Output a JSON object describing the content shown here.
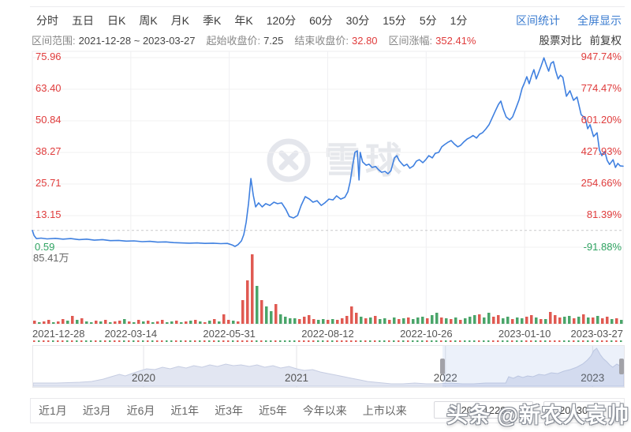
{
  "toolbar": {
    "period_tabs": [
      "分时",
      "五日",
      "日K",
      "周K",
      "月K",
      "季K",
      "年K",
      "120分",
      "60分",
      "30分",
      "15分",
      "5分",
      "1分"
    ],
    "actions": [
      {
        "label": "区间统计",
        "name": "range-stats-button"
      },
      {
        "label": "全屏显示",
        "name": "fullscreen-button"
      }
    ]
  },
  "info_bar": {
    "items": [
      {
        "label": "区间范围:",
        "value": "2021-12-28 ~ 2023-03-27",
        "color": "#454545"
      },
      {
        "label": "起始收盘价:",
        "value": "7.25",
        "color": "#454545"
      },
      {
        "label": "结束收盘价:",
        "value": "32.80",
        "color": "#e03c3c"
      },
      {
        "label": "区间涨幅:",
        "value": "352.41%",
        "color": "#e03c3c"
      }
    ],
    "actions": [
      {
        "label": "股票对比",
        "name": "stock-compare-button"
      },
      {
        "label": "前复权",
        "name": "adjust-mode-button"
      }
    ]
  },
  "colors": {
    "up": "#e03c3c",
    "down": "#2fa361",
    "link": "#3b7cd0",
    "line": "#3f80e0",
    "vol_up": "#e05a52",
    "vol_down": "#4aa56a"
  },
  "chart_data": {
    "type": "line",
    "title": "",
    "y_range": [
      0.59,
      75.96
    ],
    "baseline_price": 7.25,
    "y_axis_left": {
      "price_ticks": [
        75.96,
        63.4,
        50.84,
        38.27,
        25.71,
        13.15
      ],
      "min_label": "0.59",
      "volume_max_label": "85.41万"
    },
    "y_axis_right": {
      "percent_ticks": [
        "947.74%",
        "774.47%",
        "601.20%",
        "427.93%",
        "254.66%",
        "81.39%"
      ],
      "min_label": "-91.88%"
    },
    "x_labels": [
      "2021-12-28",
      "2022-03-14",
      "2022-05-31",
      "2022-08-12",
      "2022-10-26",
      "2023-01-10",
      "2023-03-27"
    ],
    "grid": true,
    "price_points": [
      [
        0,
        7.25
      ],
      [
        0.003,
        5.2
      ],
      [
        0.007,
        4.0
      ],
      [
        0.015,
        4.2
      ],
      [
        0.025,
        3.9
      ],
      [
        0.039,
        4.1
      ],
      [
        0.052,
        3.8
      ],
      [
        0.065,
        4.0
      ],
      [
        0.079,
        3.6
      ],
      [
        0.092,
        3.8
      ],
      [
        0.105,
        3.4
      ],
      [
        0.119,
        3.6
      ],
      [
        0.132,
        3.2
      ],
      [
        0.146,
        3.3
      ],
      [
        0.159,
        3.0
      ],
      [
        0.172,
        3.1
      ],
      [
        0.186,
        2.8
      ],
      [
        0.199,
        2.9
      ],
      [
        0.212,
        2.6
      ],
      [
        0.226,
        2.7
      ],
      [
        0.239,
        2.4
      ],
      [
        0.252,
        2.3
      ],
      [
        0.266,
        2.2
      ],
      [
        0.279,
        2.3
      ],
      [
        0.292,
        2.1
      ],
      [
        0.306,
        2.2
      ],
      [
        0.319,
        2.0
      ],
      [
        0.33,
        2.1
      ],
      [
        0.338,
        1.5
      ],
      [
        0.343,
        0.9
      ],
      [
        0.348,
        1.6
      ],
      [
        0.354,
        3.1
      ],
      [
        0.358,
        5.6
      ],
      [
        0.362,
        10.5
      ],
      [
        0.366,
        18.0
      ],
      [
        0.37,
        27.9
      ],
      [
        0.374,
        21.3
      ],
      [
        0.378,
        16.6
      ],
      [
        0.383,
        18.2
      ],
      [
        0.389,
        16.6
      ],
      [
        0.395,
        17.9
      ],
      [
        0.402,
        17.2
      ],
      [
        0.409,
        18.5
      ],
      [
        0.415,
        17.9
      ],
      [
        0.422,
        18.2
      ],
      [
        0.429,
        15.7
      ],
      [
        0.435,
        12.8
      ],
      [
        0.442,
        12.2
      ],
      [
        0.449,
        13.2
      ],
      [
        0.455,
        17.2
      ],
      [
        0.462,
        20.7
      ],
      [
        0.469,
        19.7
      ],
      [
        0.475,
        18.5
      ],
      [
        0.482,
        19.1
      ],
      [
        0.489,
        17.2
      ],
      [
        0.495,
        18.2
      ],
      [
        0.502,
        19.7
      ],
      [
        0.509,
        19.4
      ],
      [
        0.515,
        21.0
      ],
      [
        0.522,
        19.7
      ],
      [
        0.529,
        20.4
      ],
      [
        0.534,
        22.6
      ],
      [
        0.538,
        26.7
      ],
      [
        0.542,
        32.9
      ],
      [
        0.546,
        38.3
      ],
      [
        0.55,
        38.9
      ],
      [
        0.553,
        27.3
      ],
      [
        0.555,
        38.3
      ],
      [
        0.559,
        34.5
      ],
      [
        0.565,
        33.2
      ],
      [
        0.57,
        33.6
      ],
      [
        0.575,
        32.3
      ],
      [
        0.581,
        32.7
      ],
      [
        0.586,
        31.4
      ],
      [
        0.591,
        30.4
      ],
      [
        0.597,
        30.7
      ],
      [
        0.602,
        29.8
      ],
      [
        0.607,
        31.0
      ],
      [
        0.613,
        36.1
      ],
      [
        0.617,
        37.0
      ],
      [
        0.621,
        35.0
      ],
      [
        0.625,
        33.9
      ],
      [
        0.629,
        32.9
      ],
      [
        0.634,
        33.6
      ],
      [
        0.639,
        32.0
      ],
      [
        0.645,
        32.9
      ],
      [
        0.65,
        34.8
      ],
      [
        0.655,
        35.4
      ],
      [
        0.661,
        34.2
      ],
      [
        0.666,
        35.4
      ],
      [
        0.671,
        37.0
      ],
      [
        0.677,
        36.1
      ],
      [
        0.682,
        37.9
      ],
      [
        0.688,
        38.3
      ],
      [
        0.693,
        40.5
      ],
      [
        0.698,
        41.4
      ],
      [
        0.704,
        42.4
      ],
      [
        0.709,
        43.0
      ],
      [
        0.714,
        41.7
      ],
      [
        0.72,
        40.5
      ],
      [
        0.725,
        41.1
      ],
      [
        0.73,
        42.4
      ],
      [
        0.736,
        43.6
      ],
      [
        0.741,
        44.2
      ],
      [
        0.746,
        45.0
      ],
      [
        0.752,
        44.0
      ],
      [
        0.757,
        45.5
      ],
      [
        0.762,
        46.1
      ],
      [
        0.768,
        47.7
      ],
      [
        0.773,
        49.3
      ],
      [
        0.778,
        51.8
      ],
      [
        0.784,
        54.9
      ],
      [
        0.789,
        57.4
      ],
      [
        0.793,
        58.7
      ],
      [
        0.797,
        55.5
      ],
      [
        0.802,
        52.4
      ],
      [
        0.808,
        51.2
      ],
      [
        0.813,
        52.4
      ],
      [
        0.818,
        55.5
      ],
      [
        0.824,
        59.3
      ],
      [
        0.829,
        63.7
      ],
      [
        0.833,
        65.9
      ],
      [
        0.837,
        68.4
      ],
      [
        0.841,
        65.6
      ],
      [
        0.845,
        68.7
      ],
      [
        0.849,
        71.2
      ],
      [
        0.853,
        67.5
      ],
      [
        0.857,
        70.0
      ],
      [
        0.861,
        72.5
      ],
      [
        0.866,
        75.9
      ],
      [
        0.87,
        73.1
      ],
      [
        0.874,
        70.6
      ],
      [
        0.878,
        73.7
      ],
      [
        0.882,
        74.4
      ],
      [
        0.886,
        70.6
      ],
      [
        0.89,
        67.5
      ],
      [
        0.894,
        69.0
      ],
      [
        0.898,
        68.1
      ],
      [
        0.904,
        60.6
      ],
      [
        0.91,
        62.8
      ],
      [
        0.916,
        59.0
      ],
      [
        0.922,
        60.3
      ],
      [
        0.929,
        53.3
      ],
      [
        0.936,
        51.8
      ],
      [
        0.94,
        47.7
      ],
      [
        0.944,
        49.3
      ],
      [
        0.95,
        44.6
      ],
      [
        0.956,
        46.1
      ],
      [
        0.96,
        39.2
      ],
      [
        0.964,
        37.0
      ],
      [
        0.969,
        38.6
      ],
      [
        0.973,
        35.1
      ],
      [
        0.977,
        33.5
      ],
      [
        0.983,
        35.4
      ],
      [
        0.987,
        32.3
      ],
      [
        0.991,
        33.9
      ],
      [
        0.995,
        32.9
      ],
      [
        1,
        32.8
      ]
    ],
    "volume_bars": [
      "4r",
      "2g",
      "3r",
      "5r",
      "2g",
      "3r",
      "6r",
      "4g",
      "10r",
      "5g",
      "7r",
      "3g",
      "2g",
      "4r",
      "3g",
      "5r",
      "2g",
      "3r",
      "4r",
      "6g",
      "3r",
      "2g",
      "5r",
      "3g",
      "4r",
      "2g",
      "3r",
      "5r",
      "2g",
      "3g",
      "4r",
      "2g",
      "3r",
      "4g",
      "5r",
      "3g",
      "2r",
      "4g",
      "6r",
      "3g",
      "12r",
      "5r",
      "4g",
      "3r",
      "30r",
      "55r",
      "88r",
      "48g",
      "30r",
      "22g",
      "16g",
      "25r",
      "12g",
      "9g",
      "7g",
      "7g",
      "6r",
      "9r",
      "11r",
      "6r",
      "5g",
      "6g",
      "5r",
      "6g",
      "5r",
      "7r",
      "10r",
      "22r",
      "14r",
      "9g",
      "7r",
      "8g",
      "10r",
      "6g",
      "7g",
      "5r",
      "8g",
      "6r",
      "7g",
      "8r",
      "6g",
      "8g",
      "9g",
      "7r",
      "11g",
      "14g",
      "8r",
      "7g",
      "6r",
      "8g",
      "5r",
      "7g",
      "9g",
      "11g",
      "12r",
      "8g",
      "14g",
      "9r",
      "11r",
      "7g",
      "9g",
      "6r",
      "8g",
      "7g",
      "9r",
      "11r",
      "8g",
      "6r",
      "6g",
      "15r",
      "11r",
      "8r",
      "9g",
      "10g",
      "7r",
      "9g",
      "12r",
      "8g",
      "8r",
      "10g",
      "7r",
      "9r",
      "6g",
      "7r",
      "5g"
    ],
    "navigator": {
      "year_labels": [
        "2020",
        "2021",
        "2022",
        "2023"
      ],
      "year_positions": [
        0.187,
        0.446,
        0.698,
        0.947
      ],
      "area_max": 50,
      "selection": [
        0.693,
        1.0
      ],
      "area_points": [
        [
          0,
          4
        ],
        [
          0.039,
          4
        ],
        [
          0.079,
          5
        ],
        [
          0.099,
          6
        ],
        [
          0.119,
          9
        ],
        [
          0.132,
          12
        ],
        [
          0.146,
          15
        ],
        [
          0.156,
          13
        ],
        [
          0.167,
          16
        ],
        [
          0.179,
          19
        ],
        [
          0.192,
          22
        ],
        [
          0.206,
          21
        ],
        [
          0.219,
          24
        ],
        [
          0.232,
          22
        ],
        [
          0.246,
          25
        ],
        [
          0.259,
          23
        ],
        [
          0.272,
          26
        ],
        [
          0.286,
          24
        ],
        [
          0.299,
          27
        ],
        [
          0.312,
          25
        ],
        [
          0.326,
          28
        ],
        [
          0.339,
          26
        ],
        [
          0.352,
          27
        ],
        [
          0.366,
          25
        ],
        [
          0.379,
          27
        ],
        [
          0.392,
          24
        ],
        [
          0.406,
          26
        ],
        [
          0.419,
          23
        ],
        [
          0.433,
          25
        ],
        [
          0.446,
          22
        ],
        [
          0.459,
          20
        ],
        [
          0.473,
          21
        ],
        [
          0.486,
          18
        ],
        [
          0.499,
          16
        ],
        [
          0.513,
          14
        ],
        [
          0.526,
          12
        ],
        [
          0.539,
          10
        ],
        [
          0.553,
          8
        ],
        [
          0.566,
          6
        ],
        [
          0.579,
          5
        ],
        [
          0.593,
          4
        ],
        [
          0.606,
          3
        ],
        [
          0.626,
          3
        ],
        [
          0.646,
          4
        ],
        [
          0.666,
          3
        ],
        [
          0.686,
          3
        ],
        [
          0.706,
          4
        ],
        [
          0.726,
          3
        ],
        [
          0.746,
          3
        ],
        [
          0.766,
          4
        ],
        [
          0.786,
          4
        ],
        [
          0.8,
          4
        ],
        [
          0.805,
          12
        ],
        [
          0.813,
          10
        ],
        [
          0.821,
          13
        ],
        [
          0.829,
          11
        ],
        [
          0.837,
          13
        ],
        [
          0.846,
          12
        ],
        [
          0.856,
          15
        ],
        [
          0.866,
          14
        ],
        [
          0.877,
          17
        ],
        [
          0.888,
          16
        ],
        [
          0.898,
          19
        ],
        [
          0.909,
          21
        ],
        [
          0.92,
          24
        ],
        [
          0.93,
          28
        ],
        [
          0.938,
          33
        ],
        [
          0.944,
          38
        ],
        [
          0.949,
          45
        ],
        [
          0.954,
          48
        ],
        [
          0.96,
          40
        ],
        [
          0.965,
          35
        ],
        [
          0.971,
          31
        ],
        [
          0.976,
          27
        ],
        [
          0.981,
          24
        ],
        [
          0.988,
          28
        ],
        [
          0.993,
          26
        ],
        [
          1,
          22
        ]
      ]
    }
  },
  "range_bar": {
    "buttons": [
      "近1月",
      "近3月",
      "近6月",
      "近1年",
      "近3年",
      "近5年",
      "今年以来",
      "上市以来"
    ],
    "start_value": "20211228",
    "end_value": "20230327"
  },
  "watermarks": {
    "logo_text": "雪球",
    "photo_credit": "头条 @新农人袁帅"
  }
}
